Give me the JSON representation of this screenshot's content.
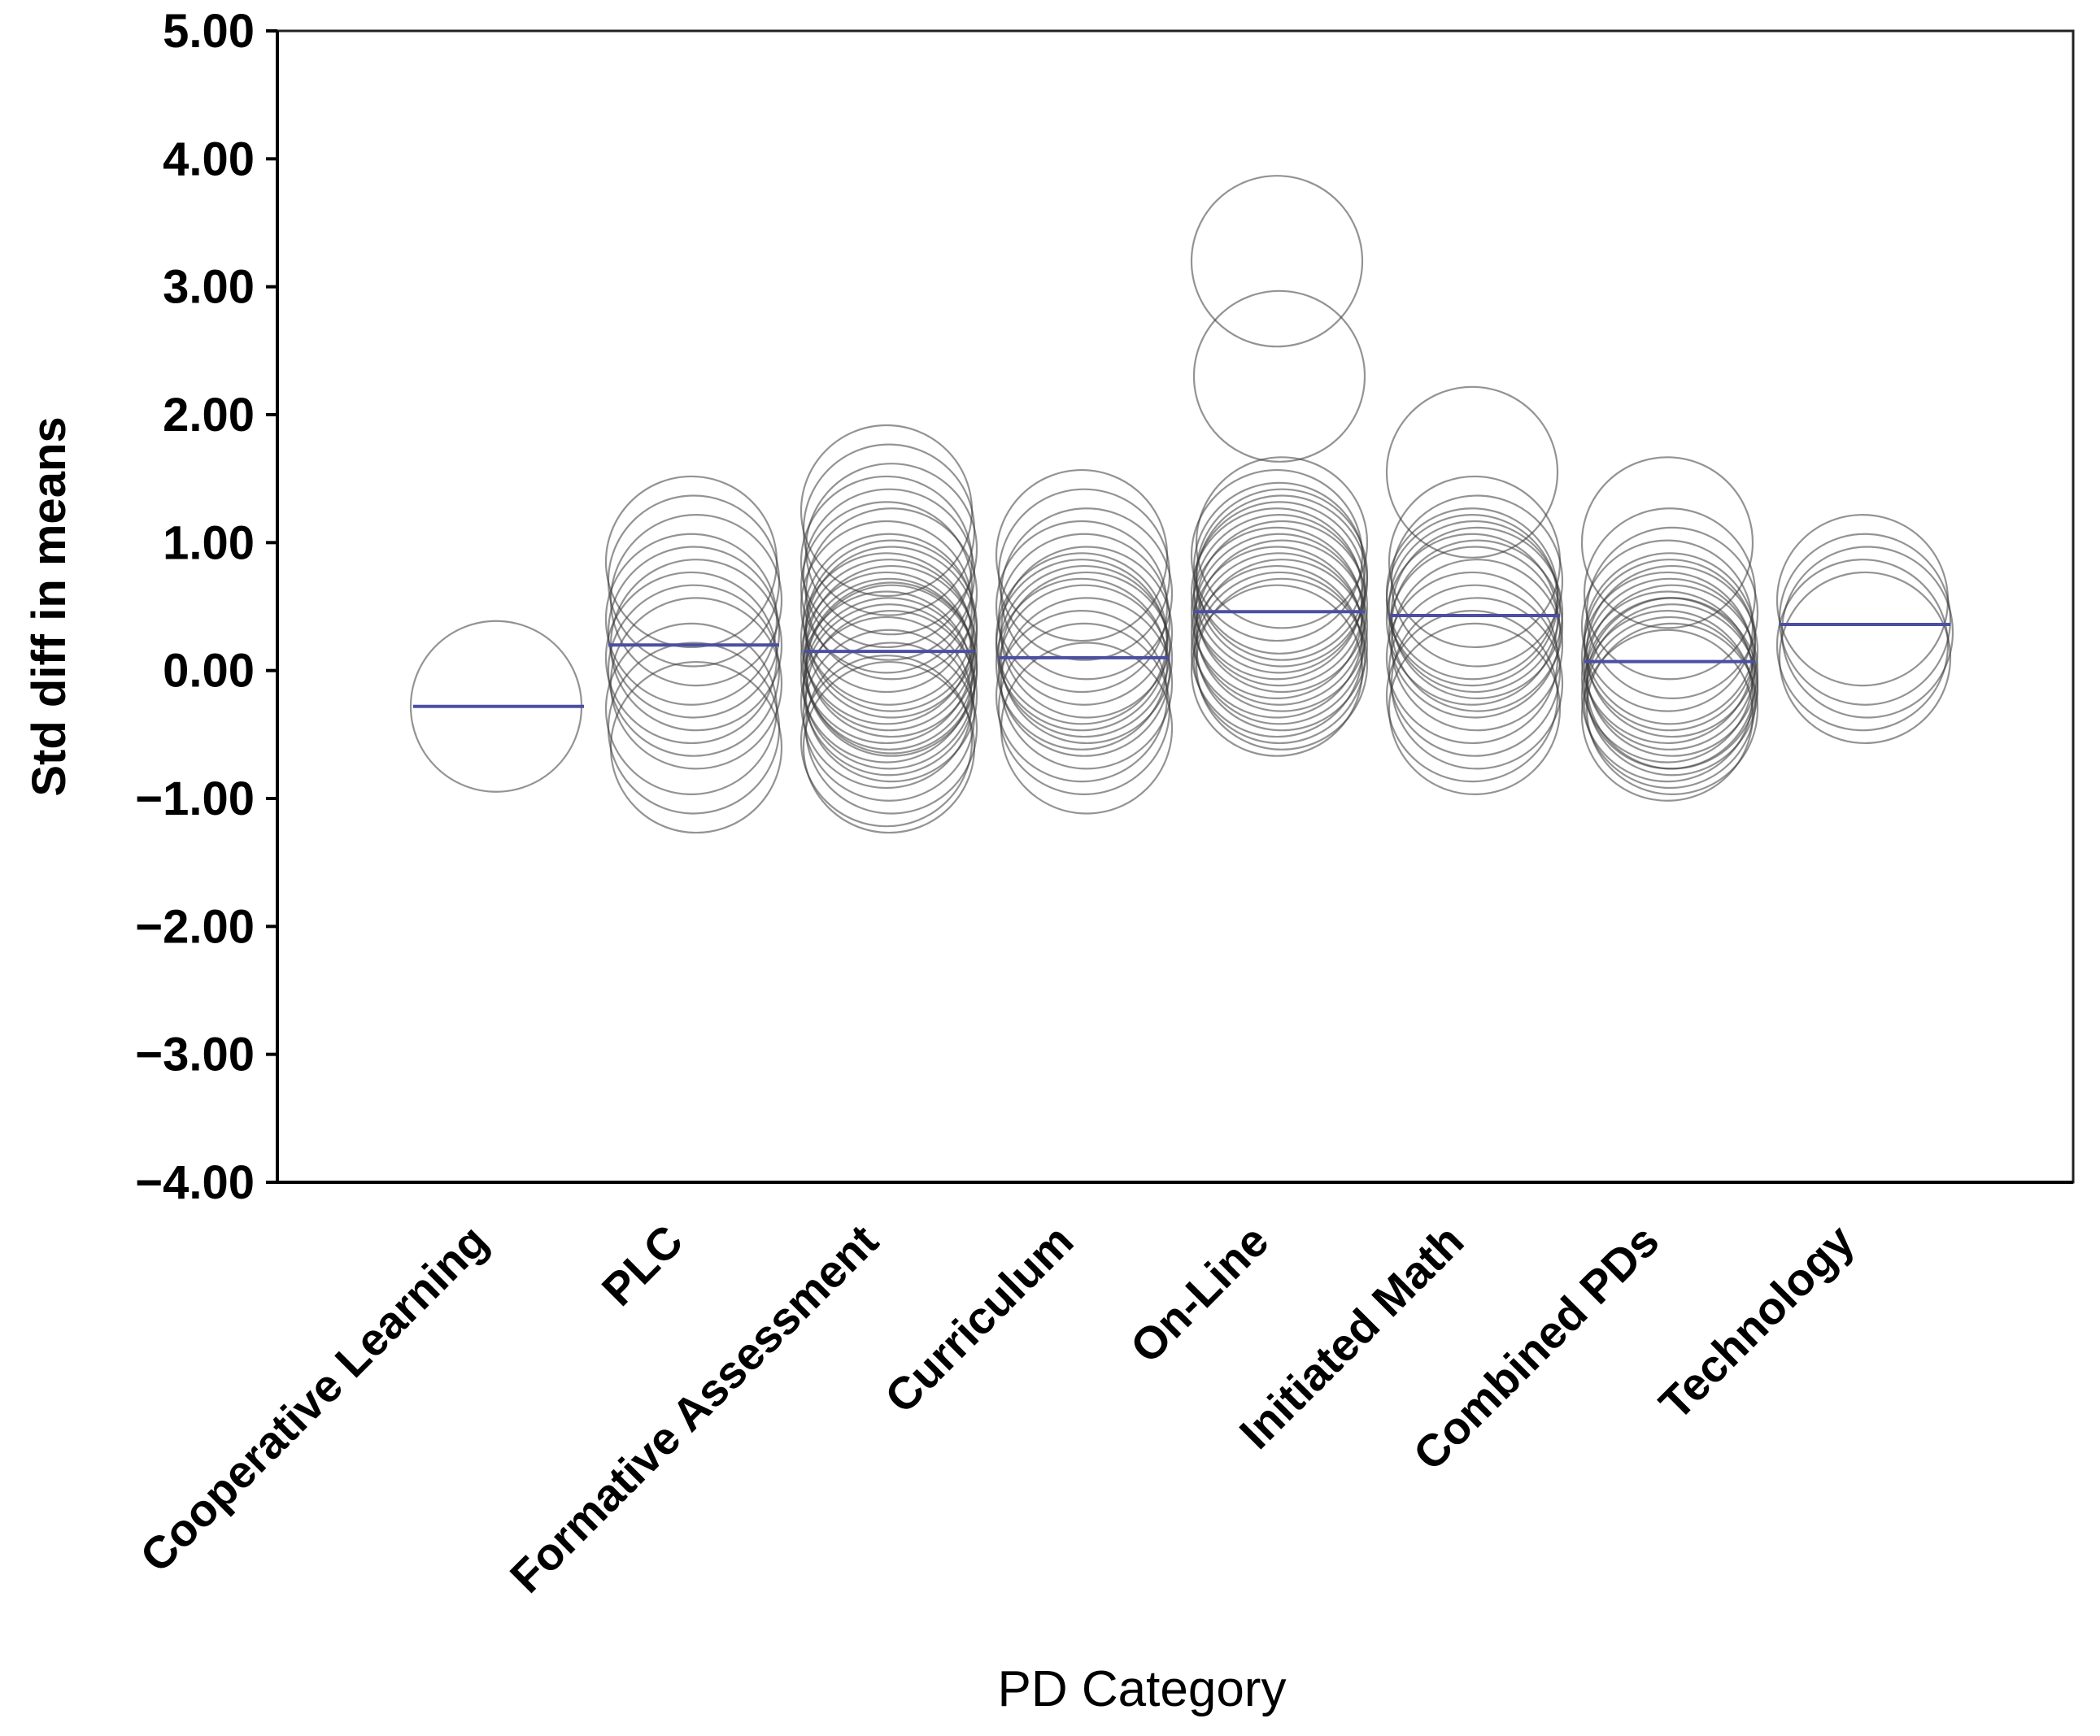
{
  "chart_data": {
    "type": "scatter",
    "title": "",
    "xlabel": "PD Category",
    "ylabel": "Std diff in means",
    "ylim": [
      -4,
      5
    ],
    "yticks": [
      5,
      4,
      3,
      2,
      1,
      0,
      -1,
      -2,
      -3,
      -4
    ],
    "ytick_labels": [
      "5.00",
      "4.00",
      "3.00",
      "2.00",
      "1.00",
      "0.00",
      "−1.00",
      "−2.00",
      "−3.00",
      "−4.00"
    ],
    "categories": [
      "Cooperative Learning",
      "PLC",
      "Formative Assessment",
      "Curriculum",
      "On-Line",
      "Initiated Math",
      "Combined PDs",
      "Technology"
    ],
    "category_means": [
      -0.28,
      0.2,
      0.15,
      0.1,
      0.46,
      0.43,
      0.07,
      0.36
    ],
    "studies": [
      [
        -0.28
      ],
      [
        0.85,
        0.7,
        0.55,
        0.4,
        0.3,
        0.2,
        0.1,
        0.0,
        -0.1,
        -0.3,
        -0.45,
        -0.6
      ],
      [
        1.25,
        1.1,
        0.95,
        0.85,
        0.75,
        0.6,
        0.5,
        0.4,
        0.3,
        0.25,
        0.2,
        0.15,
        0.1,
        0.05,
        0.0,
        -0.05,
        -0.1,
        -0.2,
        -0.25,
        -0.35,
        -0.45,
        -0.55,
        -0.6,
        0.35,
        0.65,
        -0.15,
        0.02
      ],
      [
        0.9,
        0.75,
        0.6,
        0.5,
        0.4,
        0.3,
        0.2,
        0.15,
        0.1,
        0.05,
        0.0,
        -0.1,
        -0.2,
        -0.3,
        -0.45,
        0.25
      ],
      [
        3.2,
        2.3,
        1.0,
        0.9,
        0.8,
        0.7,
        0.6,
        0.55,
        0.5,
        0.45,
        0.4,
        0.35,
        0.3,
        0.25,
        0.2,
        0.15,
        0.1,
        0.05,
        0.0,
        0.65,
        0.75
      ],
      [
        1.55,
        0.85,
        0.7,
        0.6,
        0.5,
        0.45,
        0.4,
        0.3,
        0.2,
        0.1,
        0.0,
        -0.1,
        -0.2,
        -0.3,
        0.35,
        0.55
      ],
      [
        1.0,
        0.6,
        0.45,
        0.35,
        0.25,
        0.15,
        0.1,
        0.05,
        0.0,
        -0.05,
        -0.1,
        -0.15,
        -0.2,
        -0.25,
        -0.3,
        -0.35,
        0.2,
        -0.1
      ],
      [
        0.55,
        0.4,
        0.3,
        0.2,
        0.1
      ]
    ],
    "colors": {
      "circle": "#3a3a3a",
      "mean_line": "#4b4fa3",
      "axis": "#000000"
    }
  }
}
